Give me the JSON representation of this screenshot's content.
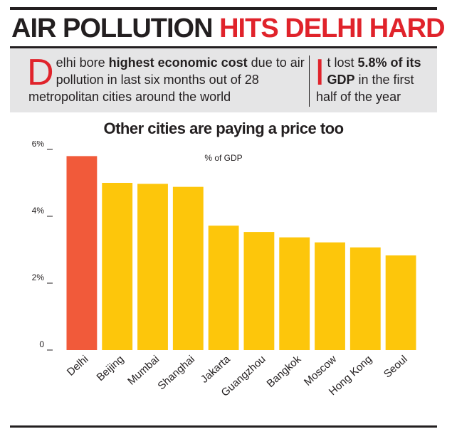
{
  "headline": {
    "part1": "AIR POLLUTION ",
    "part2": "HITS DELHI HARD",
    "colors": {
      "dark": "#231f20",
      "accent": "#e0232b"
    }
  },
  "summary": {
    "left": {
      "dropcap": "D",
      "text_a": "elhi bore ",
      "text_bold": "highest economic cost",
      "text_b": " due to air pollution in last six months out of 28 metropolitan cities around the world"
    },
    "right": {
      "dropcap": "I",
      "text_a": "t lost ",
      "text_bold": "5.8% of its GDP",
      "text_b": " in the first half of the year"
    }
  },
  "chart_data": {
    "type": "bar",
    "title": "Other cities are paying a price too",
    "unit_label": "% of GDP",
    "categories": [
      "Delhi",
      "Beijing",
      "Mumbai",
      "Shanghai",
      "Jakarta",
      "Guangzhou",
      "Bangkok",
      "Moscow",
      "Hong Kong",
      "Seoul"
    ],
    "values": [
      5.8,
      5.0,
      4.97,
      4.88,
      3.72,
      3.53,
      3.37,
      3.22,
      3.07,
      2.83
    ],
    "ylim": [
      0,
      6
    ],
    "yticks": [
      {
        "value": 0,
        "label": "0"
      },
      {
        "value": 2,
        "label": "2%"
      },
      {
        "value": 4,
        "label": "4%"
      },
      {
        "value": 6,
        "label": "6%"
      }
    ],
    "highlight_index": 0,
    "colors": {
      "highlight": "#f15a3a",
      "bar": "#fdc60b",
      "tick": "#231f20"
    },
    "grid": false
  }
}
